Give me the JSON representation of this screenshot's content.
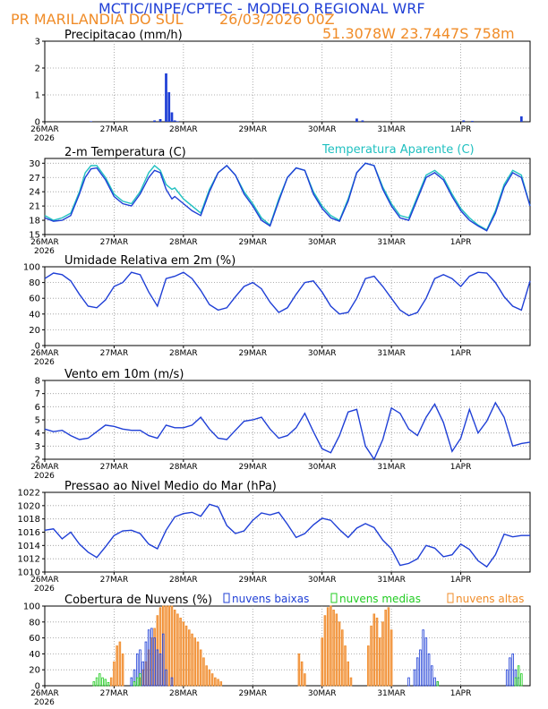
{
  "header": {
    "title": "MCTIC/INPE/CPTEC - MODELO REGIONAL WRF",
    "location": "PR MARILANDIA DO SUL",
    "run": "26/03/2026 00Z",
    "coords": "51.3078W 23.7447S 758m"
  },
  "colors": {
    "blue": "#1f3fd6",
    "cyan": "#20c0c0",
    "orange": "#f08c28",
    "green": "#22cc22",
    "grid": "#999999"
  },
  "x_axis": {
    "ticks": [
      "26MAR",
      "27MAR",
      "28MAR",
      "29MAR",
      "30MAR",
      "31MAR",
      "1APR"
    ],
    "year": "2026",
    "hours_per_day": 24,
    "total_hours": 168
  },
  "chart_data": [
    {
      "id": "precip",
      "type": "bar",
      "title": "Precipitacao (mm/h)",
      "ylim": [
        0,
        3
      ],
      "yticks": [
        0,
        1,
        2,
        3
      ],
      "x_unit": "hours since 26MAR 00Z",
      "series": [
        {
          "name": "Precipitacao",
          "color": "#1f3fd6",
          "x": [
            16,
            38,
            40,
            42,
            43,
            44,
            45,
            46,
            108,
            110,
            145,
            148,
            165
          ],
          "values": [
            0.02,
            0.05,
            0.1,
            1.8,
            1.1,
            0.35,
            0.05,
            0.02,
            0.12,
            0.05,
            0.05,
            0.03,
            0.2
          ]
        }
      ]
    },
    {
      "id": "temp",
      "type": "line",
      "title": "2-m Temperatura (C)",
      "title2": "Temperatura Aparente (C)",
      "ylim": [
        15,
        31
      ],
      "yticks": [
        15,
        18,
        21,
        24,
        27,
        30
      ],
      "x_unit": "hours since 26MAR 00Z",
      "series": [
        {
          "name": "Temperatura Aparente (C)",
          "color": "#20c0c0",
          "x": [
            0,
            3,
            6,
            9,
            12,
            14,
            16,
            18,
            21,
            24,
            27,
            30,
            33,
            36,
            38,
            40,
            42,
            44,
            45,
            48,
            51,
            54,
            57,
            60,
            63,
            66,
            69,
            72,
            75,
            78,
            81,
            84,
            87,
            90,
            93,
            96,
            99,
            102,
            105,
            108,
            111,
            114,
            117,
            120,
            123,
            126,
            129,
            132,
            135,
            138,
            141,
            144,
            147,
            150,
            153,
            156,
            159,
            162,
            165,
            168
          ],
          "values": [
            19,
            18,
            18.5,
            19.5,
            24,
            28,
            29.5,
            29.5,
            27,
            23.5,
            22,
            21.5,
            24,
            28,
            29.5,
            28.5,
            25.5,
            24.5,
            24.8,
            22.5,
            21,
            19.5,
            24.5,
            28,
            29.5,
            27.5,
            24,
            21.5,
            18.5,
            17,
            22.5,
            27,
            29,
            28.5,
            24,
            21,
            19,
            18,
            22.5,
            28,
            30,
            29.5,
            25,
            21.5,
            19,
            18.5,
            23,
            27.5,
            28.5,
            27,
            23.5,
            20.5,
            18.5,
            17,
            16,
            20,
            25.5,
            28.5,
            27.5,
            21
          ]
        },
        {
          "name": "2-m Temperatura (C)",
          "color": "#1f3fd6",
          "x": [
            0,
            3,
            6,
            9,
            12,
            14,
            16,
            18,
            21,
            24,
            27,
            30,
            33,
            36,
            38,
            40,
            42,
            44,
            45,
            48,
            51,
            54,
            57,
            60,
            63,
            66,
            69,
            72,
            75,
            78,
            81,
            84,
            87,
            90,
            93,
            96,
            99,
            102,
            105,
            108,
            111,
            114,
            117,
            120,
            123,
            126,
            129,
            132,
            135,
            138,
            141,
            144,
            147,
            150,
            153,
            156,
            159,
            162,
            165,
            168
          ],
          "values": [
            18.5,
            17.8,
            18,
            19,
            23.5,
            27,
            28.8,
            29,
            26.5,
            23,
            21.5,
            21,
            23.5,
            27,
            28.5,
            28,
            24.5,
            22.5,
            23,
            21.5,
            20,
            19,
            24,
            28,
            29.5,
            27.5,
            23.5,
            21,
            18,
            16.8,
            22,
            27,
            29,
            28.5,
            23.5,
            20.5,
            18.5,
            17.8,
            22,
            28,
            30,
            29.5,
            24.5,
            21,
            18.5,
            18,
            22.5,
            27,
            28,
            26.5,
            23,
            20,
            18,
            16.8,
            15.8,
            19.5,
            25,
            28,
            27,
            21
          ]
        }
      ]
    },
    {
      "id": "rh",
      "type": "line",
      "title": "Umidade Relativa em 2m (%)",
      "ylim": [
        0,
        100
      ],
      "yticks": [
        0,
        20,
        40,
        60,
        80,
        100
      ],
      "x_unit": "hours since 26MAR 00Z",
      "series": [
        {
          "name": "Umidade Relativa",
          "color": "#1f3fd6",
          "x": [
            0,
            3,
            6,
            9,
            12,
            15,
            18,
            21,
            24,
            27,
            30,
            33,
            36,
            39,
            42,
            45,
            48,
            51,
            54,
            57,
            60,
            63,
            66,
            69,
            72,
            75,
            78,
            81,
            84,
            87,
            90,
            93,
            96,
            99,
            102,
            105,
            108,
            111,
            114,
            117,
            120,
            123,
            126,
            129,
            132,
            135,
            138,
            141,
            144,
            147,
            150,
            153,
            156,
            159,
            162,
            165,
            168
          ],
          "values": [
            85,
            92,
            90,
            82,
            65,
            50,
            48,
            58,
            75,
            80,
            93,
            90,
            68,
            50,
            85,
            88,
            93,
            85,
            70,
            52,
            45,
            48,
            62,
            75,
            80,
            72,
            55,
            42,
            48,
            65,
            80,
            82,
            68,
            50,
            40,
            42,
            60,
            85,
            88,
            75,
            60,
            45,
            38,
            42,
            60,
            85,
            90,
            85,
            75,
            88,
            93,
            92,
            80,
            62,
            50,
            45,
            82
          ]
        }
      ]
    },
    {
      "id": "wind",
      "type": "line",
      "title": "Vento em 10m (m/s)",
      "ylim": [
        2,
        8
      ],
      "yticks": [
        2,
        3,
        4,
        5,
        6,
        7,
        8
      ],
      "x_unit": "hours since 26MAR 00Z",
      "series": [
        {
          "name": "Vento",
          "color": "#1f3fd6",
          "x": [
            0,
            3,
            6,
            9,
            12,
            15,
            18,
            21,
            24,
            27,
            30,
            33,
            36,
            39,
            42,
            45,
            48,
            51,
            54,
            57,
            60,
            63,
            66,
            69,
            72,
            75,
            78,
            81,
            84,
            87,
            90,
            93,
            96,
            99,
            102,
            105,
            108,
            111,
            114,
            117,
            120,
            123,
            126,
            129,
            132,
            135,
            138,
            141,
            144,
            147,
            150,
            153,
            156,
            159,
            162,
            165,
            168
          ],
          "values": [
            4.3,
            4.1,
            4.2,
            3.8,
            3.5,
            3.6,
            4.1,
            4.6,
            4.5,
            4.3,
            4.2,
            4.2,
            3.8,
            3.6,
            4.6,
            4.4,
            4.4,
            4.6,
            5.2,
            4.3,
            3.6,
            3.5,
            4.2,
            4.9,
            5.0,
            5.2,
            4.3,
            3.6,
            3.8,
            4.4,
            5.5,
            4.1,
            2.8,
            2.5,
            3.8,
            5.6,
            5.8,
            3.0,
            2.0,
            3.5,
            5.9,
            5.5,
            4.3,
            3.8,
            5.2,
            6.2,
            4.8,
            2.6,
            3.6,
            5.8,
            4.0,
            4.9,
            6.3,
            5.2,
            3.0,
            3.2,
            3.3
          ]
        }
      ]
    },
    {
      "id": "pressure",
      "type": "line",
      "title": "Pressao ao Nivel Medio do Mar (hPa)",
      "ylim": [
        1010,
        1022
      ],
      "yticks": [
        1010,
        1012,
        1014,
        1016,
        1018,
        1020,
        1022
      ],
      "x_unit": "hours since 26MAR 00Z",
      "series": [
        {
          "name": "Pressao",
          "color": "#1f3fd6",
          "x": [
            0,
            3,
            6,
            9,
            12,
            15,
            18,
            21,
            24,
            27,
            30,
            33,
            36,
            39,
            42,
            45,
            48,
            51,
            54,
            57,
            60,
            63,
            66,
            69,
            72,
            75,
            78,
            81,
            84,
            87,
            90,
            93,
            96,
            99,
            102,
            105,
            108,
            111,
            114,
            117,
            120,
            123,
            126,
            129,
            132,
            135,
            138,
            141,
            144,
            147,
            150,
            153,
            156,
            159,
            162,
            165,
            168
          ],
          "values": [
            1016.3,
            1016.5,
            1015.0,
            1016.0,
            1014.2,
            1013.0,
            1012.2,
            1013.8,
            1015.5,
            1016.2,
            1016.3,
            1015.8,
            1014.2,
            1013.5,
            1016.3,
            1018.3,
            1018.8,
            1019.0,
            1018.4,
            1020.2,
            1019.8,
            1017.0,
            1015.8,
            1016.2,
            1017.8,
            1018.9,
            1018.6,
            1019.0,
            1017.2,
            1015.2,
            1015.8,
            1017.1,
            1018.1,
            1017.8,
            1016.4,
            1015.2,
            1016.6,
            1017.3,
            1016.7,
            1014.8,
            1013.5,
            1011.0,
            1011.3,
            1012.0,
            1014.0,
            1013.6,
            1012.3,
            1012.6,
            1014.2,
            1013.4,
            1011.7,
            1010.8,
            1012.6,
            1015.7,
            1015.3,
            1015.5,
            1015.5
          ]
        }
      ]
    },
    {
      "id": "clouds",
      "type": "bar",
      "title": "Cobertura de Nuvens (%)",
      "ylim": [
        0,
        100
      ],
      "yticks": [
        0,
        20,
        40,
        60,
        80,
        100
      ],
      "x_unit": "hours since 26MAR 00Z",
      "legend": [
        "nuvens baixas",
        "nuvens medias",
        "nuvens altas"
      ],
      "series": [
        {
          "name": "nuvens altas",
          "color": "#f08c28",
          "x": [
            23,
            24,
            25,
            26,
            27,
            33,
            34,
            35,
            36,
            37,
            38,
            39,
            40,
            41,
            42,
            43,
            44,
            45,
            46,
            47,
            48,
            49,
            50,
            51,
            52,
            53,
            54,
            55,
            56,
            57,
            58,
            59,
            60,
            61,
            88,
            89,
            90,
            96,
            97,
            98,
            99,
            100,
            101,
            102,
            103,
            104,
            105,
            106,
            112,
            113,
            114,
            115,
            116,
            117,
            118,
            119,
            120
          ],
          "values": [
            10,
            30,
            50,
            55,
            40,
            10,
            20,
            30,
            45,
            60,
            72,
            88,
            98,
            100,
            100,
            100,
            100,
            95,
            90,
            85,
            80,
            75,
            70,
            65,
            60,
            55,
            45,
            35,
            25,
            20,
            15,
            10,
            8,
            5,
            40,
            30,
            15,
            60,
            88,
            98,
            100,
            95,
            90,
            80,
            70,
            50,
            30,
            10,
            50,
            75,
            90,
            85,
            60,
            80,
            95,
            98,
            70
          ]
        },
        {
          "name": "nuvens baixas",
          "color": "#1f3fd6",
          "x": [
            30,
            31,
            32,
            33,
            34,
            35,
            36,
            37,
            38,
            39,
            40,
            41,
            42,
            44,
            126,
            128,
            129,
            130,
            131,
            132,
            133,
            134,
            135,
            136,
            160,
            161,
            162,
            163,
            164
          ],
          "values": [
            10,
            20,
            40,
            45,
            30,
            55,
            70,
            72,
            60,
            45,
            40,
            65,
            20,
            10,
            10,
            20,
            35,
            45,
            70,
            60,
            40,
            25,
            10,
            5,
            20,
            35,
            40,
            20,
            10
          ]
        },
        {
          "name": "nuvens medias",
          "color": "#22cc22",
          "x": [
            17,
            18,
            19,
            20,
            21,
            22,
            31,
            32,
            33,
            136,
            163,
            164,
            165
          ],
          "values": [
            5,
            10,
            15,
            10,
            8,
            4,
            5,
            10,
            15,
            5,
            10,
            25,
            15
          ]
        }
      ]
    }
  ]
}
